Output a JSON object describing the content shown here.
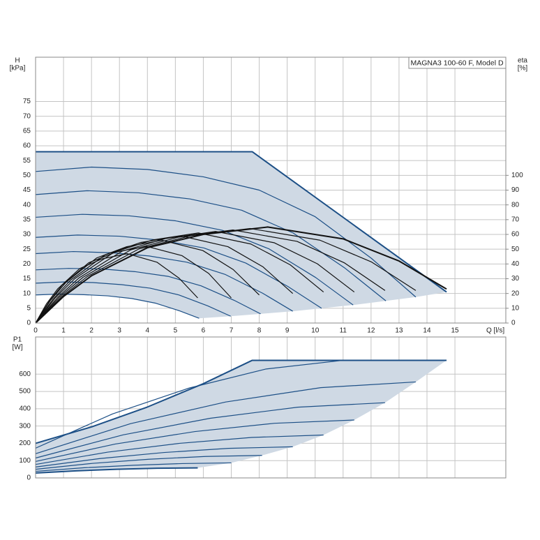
{
  "chart_data": [
    {
      "type": "line",
      "title": "MAGNA3 100-60 F, Model D",
      "ylabel": "H",
      "yunit": "[kPa]",
      "y2label": "eta",
      "y2unit": "[%]",
      "xlabel": "Q [l/s]",
      "xlim": [
        0,
        16.82
      ],
      "ylim": [
        0,
        90
      ],
      "y2lim": [
        0,
        180
      ],
      "xticks": [
        0,
        1,
        2,
        3,
        4,
        5,
        6,
        7,
        8,
        9,
        10,
        11,
        12,
        13,
        14,
        15
      ],
      "yticks": [
        0,
        5,
        10,
        15,
        20,
        25,
        30,
        35,
        40,
        45,
        50,
        55,
        60,
        65,
        70,
        75
      ],
      "y2ticks": [
        0,
        10,
        20,
        30,
        40,
        50,
        60,
        70,
        80,
        90,
        100
      ],
      "grid": true,
      "fill": "#cfd9e4",
      "series": [
        {
          "color": "#1c4f86",
          "x": [
            0,
            7.75,
            14.7
          ],
          "values": [
            58,
            58,
            10.5
          ]
        },
        {
          "color": "#1c4f86",
          "x": [
            0,
            2,
            4,
            6,
            8,
            10,
            12,
            13.6
          ],
          "values": [
            51.3,
            52.8,
            52,
            49.5,
            45,
            36,
            22,
            8.8
          ]
        },
        {
          "color": "#1c4f86",
          "x": [
            0,
            1.84,
            3.68,
            5.53,
            7.37,
            9.21,
            11.05,
            12.53
          ],
          "values": [
            43.5,
            44.8,
            44.1,
            42,
            38.2,
            30.5,
            18.7,
            7.5
          ]
        },
        {
          "color": "#1c4f86",
          "x": [
            0,
            1.67,
            3.34,
            5.01,
            6.68,
            8.35,
            10.02,
            11.36
          ],
          "values": [
            35.8,
            36.8,
            36.3,
            34.6,
            31.4,
            25.1,
            15.4,
            6.1
          ]
        },
        {
          "color": "#1c4f86",
          "x": [
            0,
            1.5,
            3.01,
            4.51,
            6.02,
            7.52,
            9.02,
            10.23
          ],
          "values": [
            29,
            29.8,
            29.4,
            28,
            25.4,
            20.3,
            12.4,
            5
          ]
        },
        {
          "color": "#1c4f86",
          "x": [
            0,
            1.35,
            2.71,
            4.06,
            5.41,
            6.77,
            8.12,
            9.2
          ],
          "values": [
            23.5,
            24.2,
            23.8,
            22.7,
            20.6,
            16.5,
            10.1,
            4
          ]
        },
        {
          "color": "#1c4f86",
          "x": [
            0,
            1.18,
            2.37,
            3.55,
            4.74,
            5.92,
            7.1,
            8.05
          ],
          "values": [
            18,
            18.5,
            18.3,
            17.4,
            15.8,
            12.6,
            7.7,
            3.1
          ]
        },
        {
          "color": "#1c4f86",
          "x": [
            0,
            1.03,
            2.05,
            3.08,
            4.1,
            5.13,
            6.16,
            6.98
          ],
          "values": [
            13.5,
            13.9,
            13.7,
            13,
            11.8,
            9.5,
            5.8,
            2.3
          ]
        },
        {
          "color": "#1c4f86",
          "x": [
            0,
            0.86,
            1.72,
            2.58,
            3.44,
            4.3,
            5.16,
            5.85
          ],
          "values": [
            9.5,
            9.8,
            9.6,
            9.2,
            8.3,
            6.7,
            4.1,
            1.6
          ]
        },
        {
          "color": "#111111",
          "axis": "y2",
          "x": [
            0,
            0.39,
            0.79,
            1.58,
            2.37,
            3.28,
            4.34,
            5.13,
            5.8
          ],
          "values": [
            0,
            13,
            23.1,
            36.9,
            43.4,
            47,
            41.2,
            30.4,
            17
          ]
        },
        {
          "color": "#111111",
          "axis": "y2",
          "x": [
            0,
            0.48,
            0.95,
            1.9,
            2.86,
            3.96,
            5.24,
            6.19,
            7
          ],
          "values": [
            0,
            14.4,
            25.6,
            40.8,
            48,
            52,
            45.6,
            33.6,
            17
          ]
        },
        {
          "color": "#111111",
          "axis": "y2",
          "x": [
            0,
            0.54,
            1.09,
            2.18,
            3.26,
            4.52,
            5.98,
            7.07,
            8
          ],
          "values": [
            0,
            15.5,
            27.6,
            44,
            51.7,
            56,
            49.1,
            36.2,
            19
          ]
        },
        {
          "color": "#111111",
          "axis": "y2",
          "x": [
            0,
            0.63,
            1.25,
            2.5,
            3.75,
            5.2,
            6.88,
            8.13,
            9.2
          ],
          "values": [
            0,
            16.3,
            29,
            46.3,
            54.5,
            59,
            51.7,
            38.1,
            20
          ]
        },
        {
          "color": "#111111",
          "axis": "y2",
          "x": [
            0,
            0.7,
            1.4,
            2.8,
            4.2,
            5.82,
            7.7,
            9.11,
            10.3
          ],
          "values": [
            0,
            16.9,
            30,
            47.9,
            56.3,
            61,
            53.5,
            39.4,
            21
          ]
        },
        {
          "color": "#111111",
          "axis": "y2",
          "x": [
            0,
            0.78,
            1.55,
            3.1,
            4.65,
            6.44,
            8.53,
            10.08,
            11.4
          ],
          "values": [
            0,
            17.2,
            30.5,
            48.7,
            57.2,
            62,
            54.4,
            40.1,
            21
          ]
        },
        {
          "color": "#111111",
          "axis": "y2",
          "x": [
            0,
            0.85,
            1.7,
            3.4,
            5.1,
            7.06,
            9.35,
            11.05,
            12.5
          ],
          "values": [
            0,
            17.5,
            31,
            49.5,
            58.1,
            63,
            55.3,
            40.7,
            22
          ]
        },
        {
          "color": "#111111",
          "axis": "y2",
          "x": [
            0,
            0.92,
            1.85,
            3.7,
            5.55,
            7.68,
            10.17,
            12.02,
            13.6
          ],
          "values": [
            0,
            17.7,
            31.5,
            50.2,
            59.1,
            64,
            56.1,
            41.3,
            22
          ]
        },
        {
          "color": "#111111",
          "axis": "y2",
          "x": [
            0,
            1,
            2,
            4,
            6,
            8.3,
            11,
            13,
            14.7
          ],
          "values": [
            0,
            18,
            32,
            51,
            60,
            65,
            57,
            42,
            23
          ]
        }
      ]
    },
    {
      "type": "line",
      "ylabel": "P1",
      "yunit": "[W]",
      "xlim": [
        0,
        16.82
      ],
      "ylim": [
        0,
        815
      ],
      "yticks": [
        0,
        100,
        200,
        300,
        400,
        500,
        600
      ],
      "grid": true,
      "fill": "#cfd9e4",
      "series": [
        {
          "color": "#1c4f86",
          "x": [
            0,
            2,
            4,
            6,
            7.75,
            14.7
          ],
          "values": [
            200,
            295,
            410,
            545,
            680,
            680
          ]
        },
        {
          "color": "#1c4f86",
          "x": [
            0,
            2.75,
            5.5,
            8.25,
            11
          ],
          "values": [
            172,
            370,
            520,
            630,
            680
          ]
        },
        {
          "color": "#1c4f86",
          "x": [
            0,
            3.4,
            6.8,
            10.2,
            13.6
          ],
          "values": [
            140,
            314,
            439,
            522,
            555
          ]
        },
        {
          "color": "#1c4f86",
          "x": [
            0,
            3.13,
            6.25,
            9.38,
            12.5
          ],
          "values": [
            115,
            249,
            345,
            409,
            435
          ]
        },
        {
          "color": "#1c4f86",
          "x": [
            0,
            2.85,
            5.7,
            8.55,
            11.4
          ],
          "values": [
            95,
            196,
            268,
            316,
            335
          ]
        },
        {
          "color": "#1c4f86",
          "x": [
            0,
            2.58,
            5.15,
            7.73,
            10.3
          ],
          "values": [
            78,
            149,
            200,
            234,
            248
          ]
        },
        {
          "color": "#1c4f86",
          "x": [
            0,
            2.3,
            4.6,
            6.9,
            9.2
          ],
          "values": [
            63,
            112,
            147,
            171,
            180
          ]
        },
        {
          "color": "#1c4f86",
          "x": [
            0,
            2.03,
            4.05,
            6.08,
            8.1
          ],
          "values": [
            50,
            84,
            108,
            124,
            130
          ]
        },
        {
          "color": "#1c4f86",
          "x": [
            0,
            1.75,
            3.5,
            5.25,
            7
          ],
          "values": [
            38,
            59,
            73,
            83,
            87
          ]
        },
        {
          "color": "#1c4f86",
          "x": [
            0,
            1.45,
            2.9,
            4.35,
            5.8
          ],
          "values": [
            28,
            41,
            50,
            56,
            58
          ]
        }
      ]
    }
  ]
}
